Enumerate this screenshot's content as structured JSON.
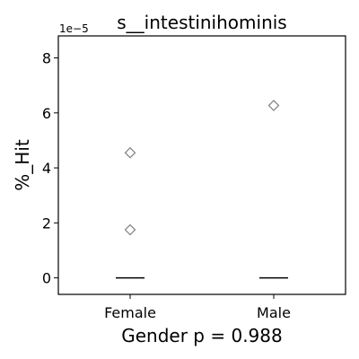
{
  "chart_data": {
    "type": "scatter",
    "title": "s__intestinihominis",
    "xlabel": "Gender p = 0.988",
    "ylabel": "%_Hit",
    "y_offset_label": "1e−5",
    "y_scale": "1e-5",
    "categories": [
      "Female",
      "Male"
    ],
    "yticks": [
      0,
      2,
      4,
      6,
      8
    ],
    "ylim": [
      -0.6,
      8.8
    ],
    "grid": false,
    "points": [
      {
        "category": "Female",
        "y": 4.55,
        "marker": "diamond-open"
      },
      {
        "category": "Female",
        "y": 1.75,
        "marker": "diamond-open"
      },
      {
        "category": "Male",
        "y": 6.27,
        "marker": "diamond-open"
      }
    ],
    "medians": [
      {
        "category": "Female",
        "y": 0
      },
      {
        "category": "Male",
        "y": 0
      }
    ],
    "colors": {
      "marker": "#7f7f7f",
      "median": "#000000",
      "axes": "#000000"
    }
  }
}
